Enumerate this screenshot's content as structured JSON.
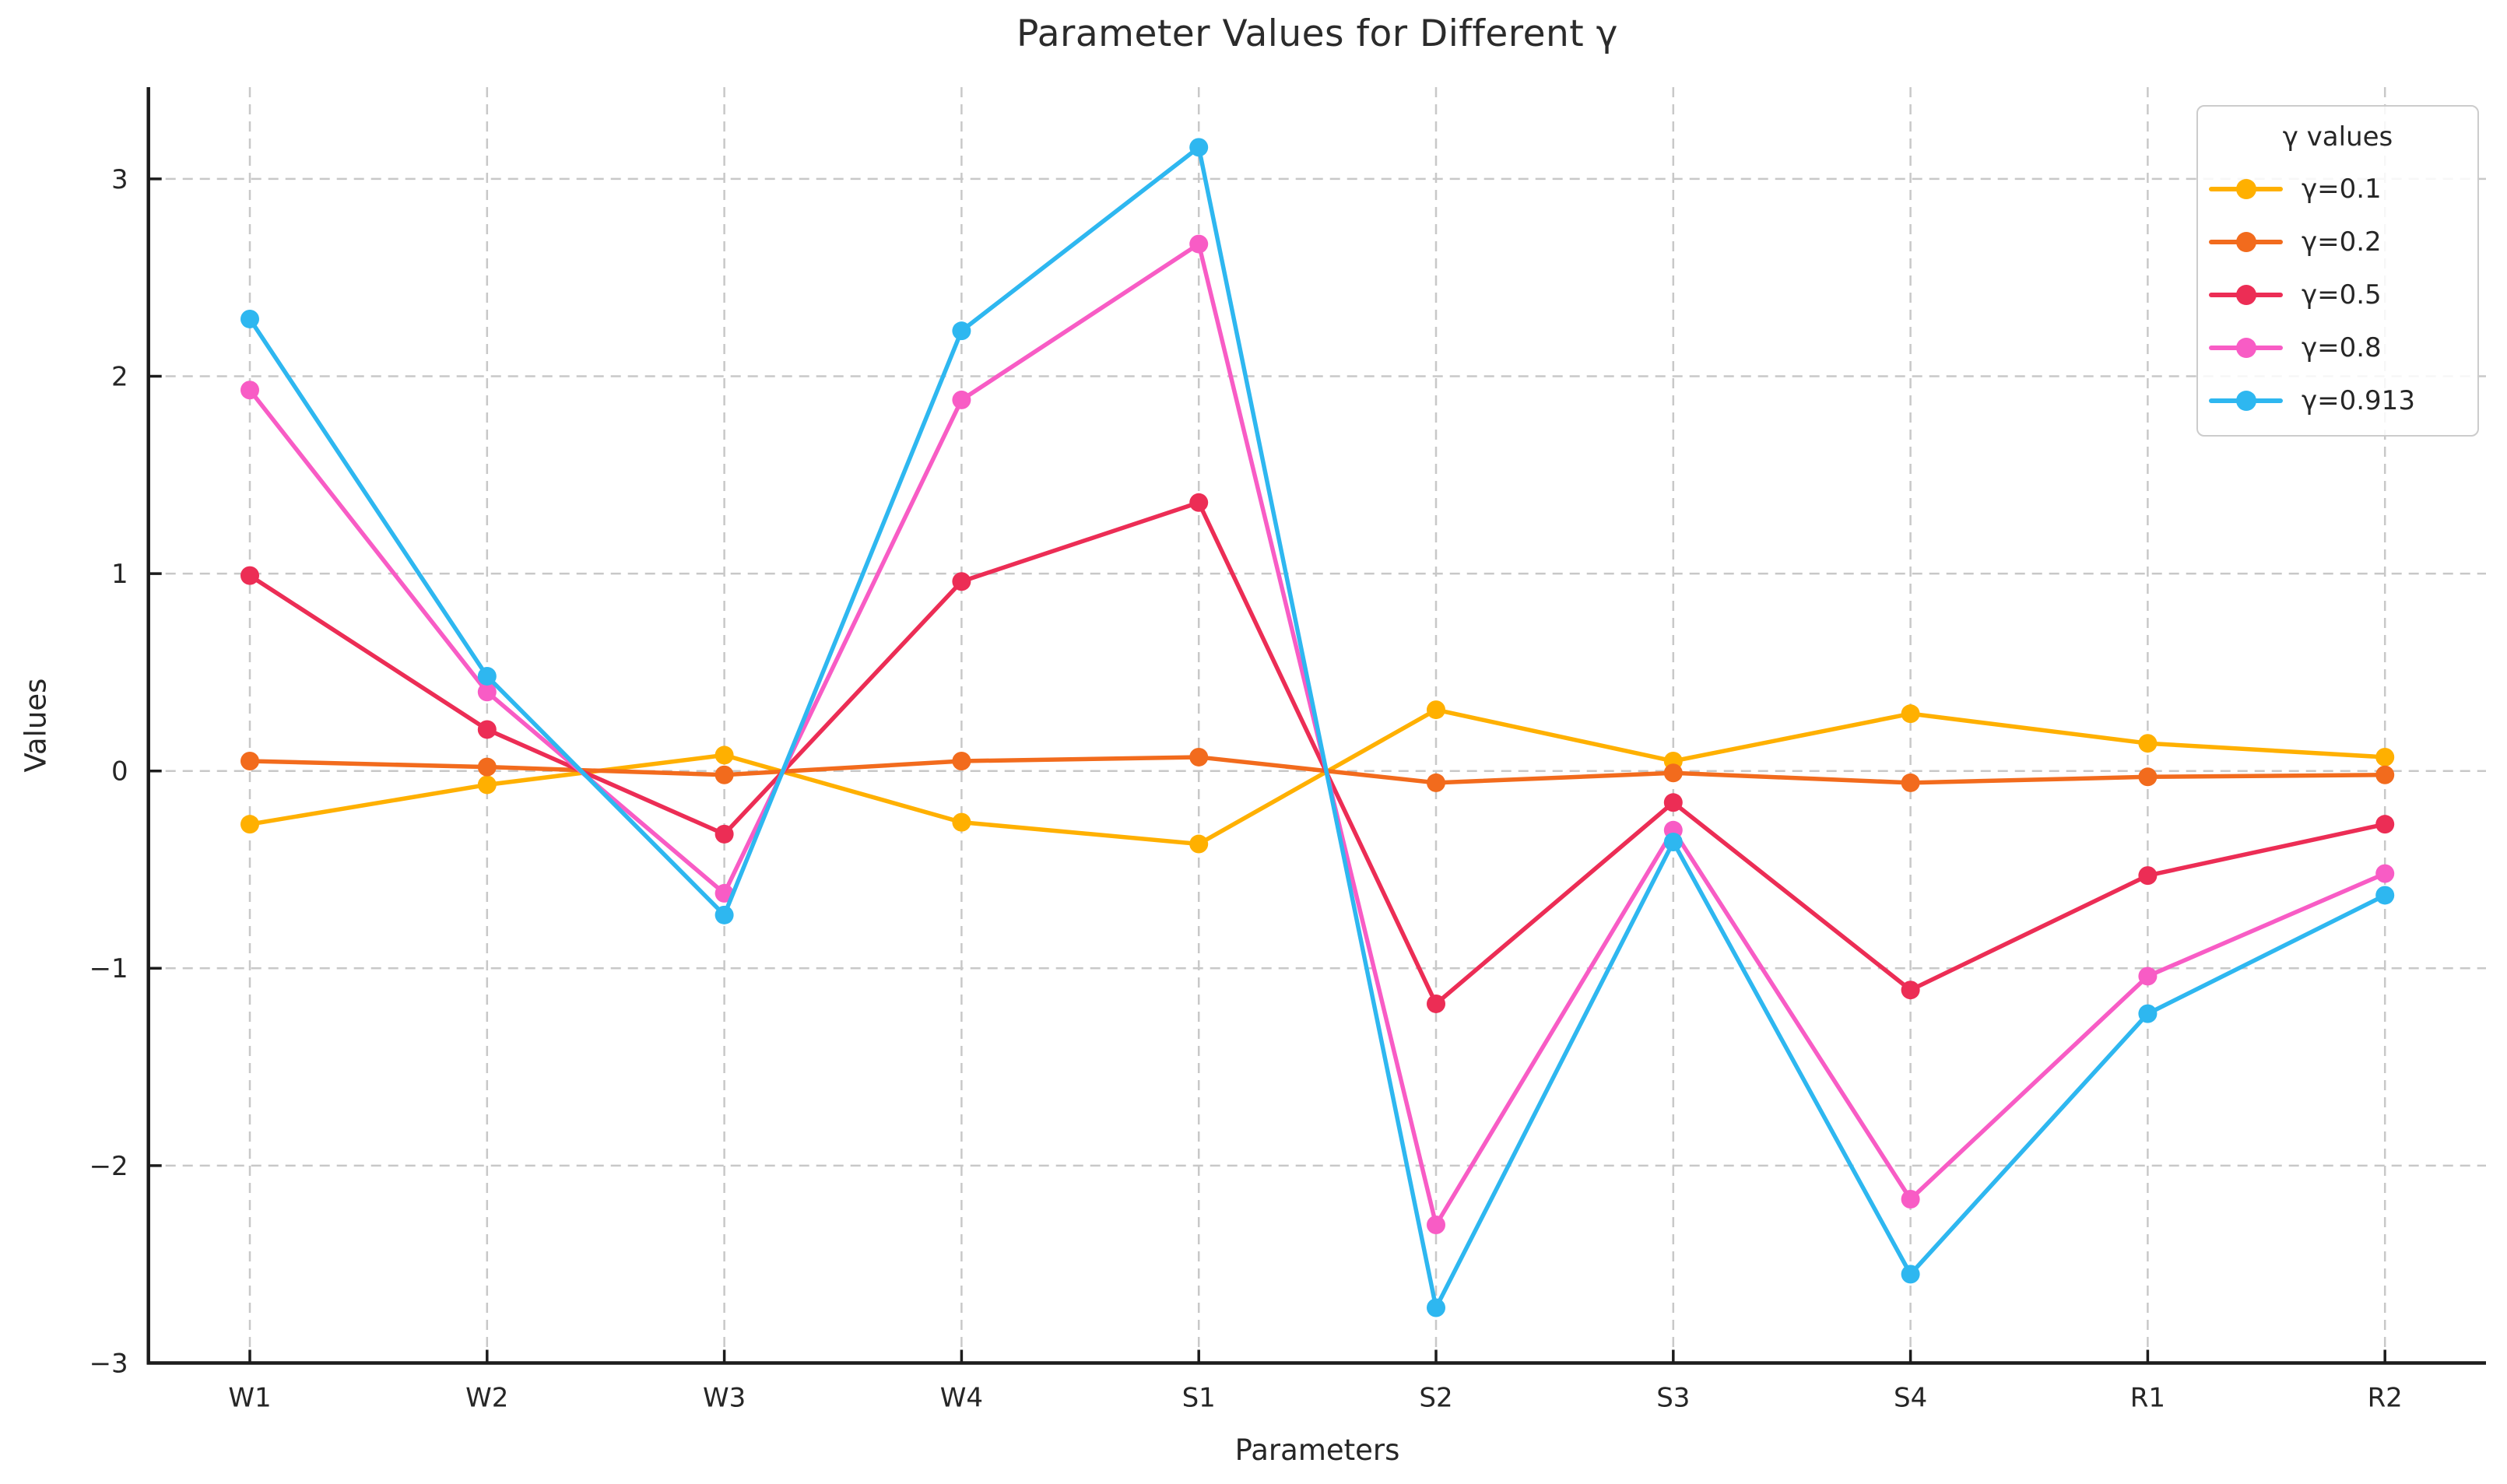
{
  "chart_data": {
    "type": "line",
    "title": "Parameter Values for Different γ",
    "xlabel": "Parameters",
    "ylabel": "Values",
    "categories": [
      "W1",
      "W2",
      "W3",
      "W4",
      "S1",
      "S2",
      "S3",
      "S4",
      "R1",
      "R2"
    ],
    "yticks": [
      -3,
      -2,
      -1,
      0,
      1,
      2,
      3
    ],
    "ytick_labels": [
      "−3",
      "−2",
      "−1",
      "0",
      "1",
      "2",
      "3"
    ],
    "ylim": [
      -3,
      3.46
    ],
    "grid": true,
    "grid_style": "dashed",
    "legend": {
      "title": "γ values",
      "position": "upper-right"
    },
    "series": [
      {
        "name": "γ=0.1",
        "color": "#FFB000",
        "values": [
          -0.27,
          -0.07,
          0.08,
          -0.26,
          -0.37,
          0.31,
          0.05,
          0.29,
          0.14,
          0.07
        ]
      },
      {
        "name": "γ=0.2",
        "color": "#F26B1D",
        "values": [
          0.05,
          0.02,
          -0.02,
          0.05,
          0.07,
          -0.06,
          -0.01,
          -0.06,
          -0.03,
          -0.02
        ]
      },
      {
        "name": "γ=0.5",
        "color": "#EC2D55",
        "values": [
          0.99,
          0.21,
          -0.32,
          0.96,
          1.36,
          -1.18,
          -0.16,
          -1.11,
          -0.53,
          -0.27
        ]
      },
      {
        "name": "γ=0.8",
        "color": "#F85CC5",
        "values": [
          1.93,
          0.4,
          -0.62,
          1.88,
          2.67,
          -2.3,
          -0.3,
          -2.17,
          -1.04,
          -0.52
        ]
      },
      {
        "name": "γ=0.913",
        "color": "#2EB7F0",
        "values": [
          2.29,
          0.48,
          -0.73,
          2.23,
          3.16,
          -2.72,
          -0.36,
          -2.55,
          -1.23,
          -0.63
        ]
      }
    ]
  },
  "colors": {
    "background": "#ffffff",
    "grid": "#c8c8c8",
    "axis": "#1c1c1c",
    "text": "#262626"
  }
}
